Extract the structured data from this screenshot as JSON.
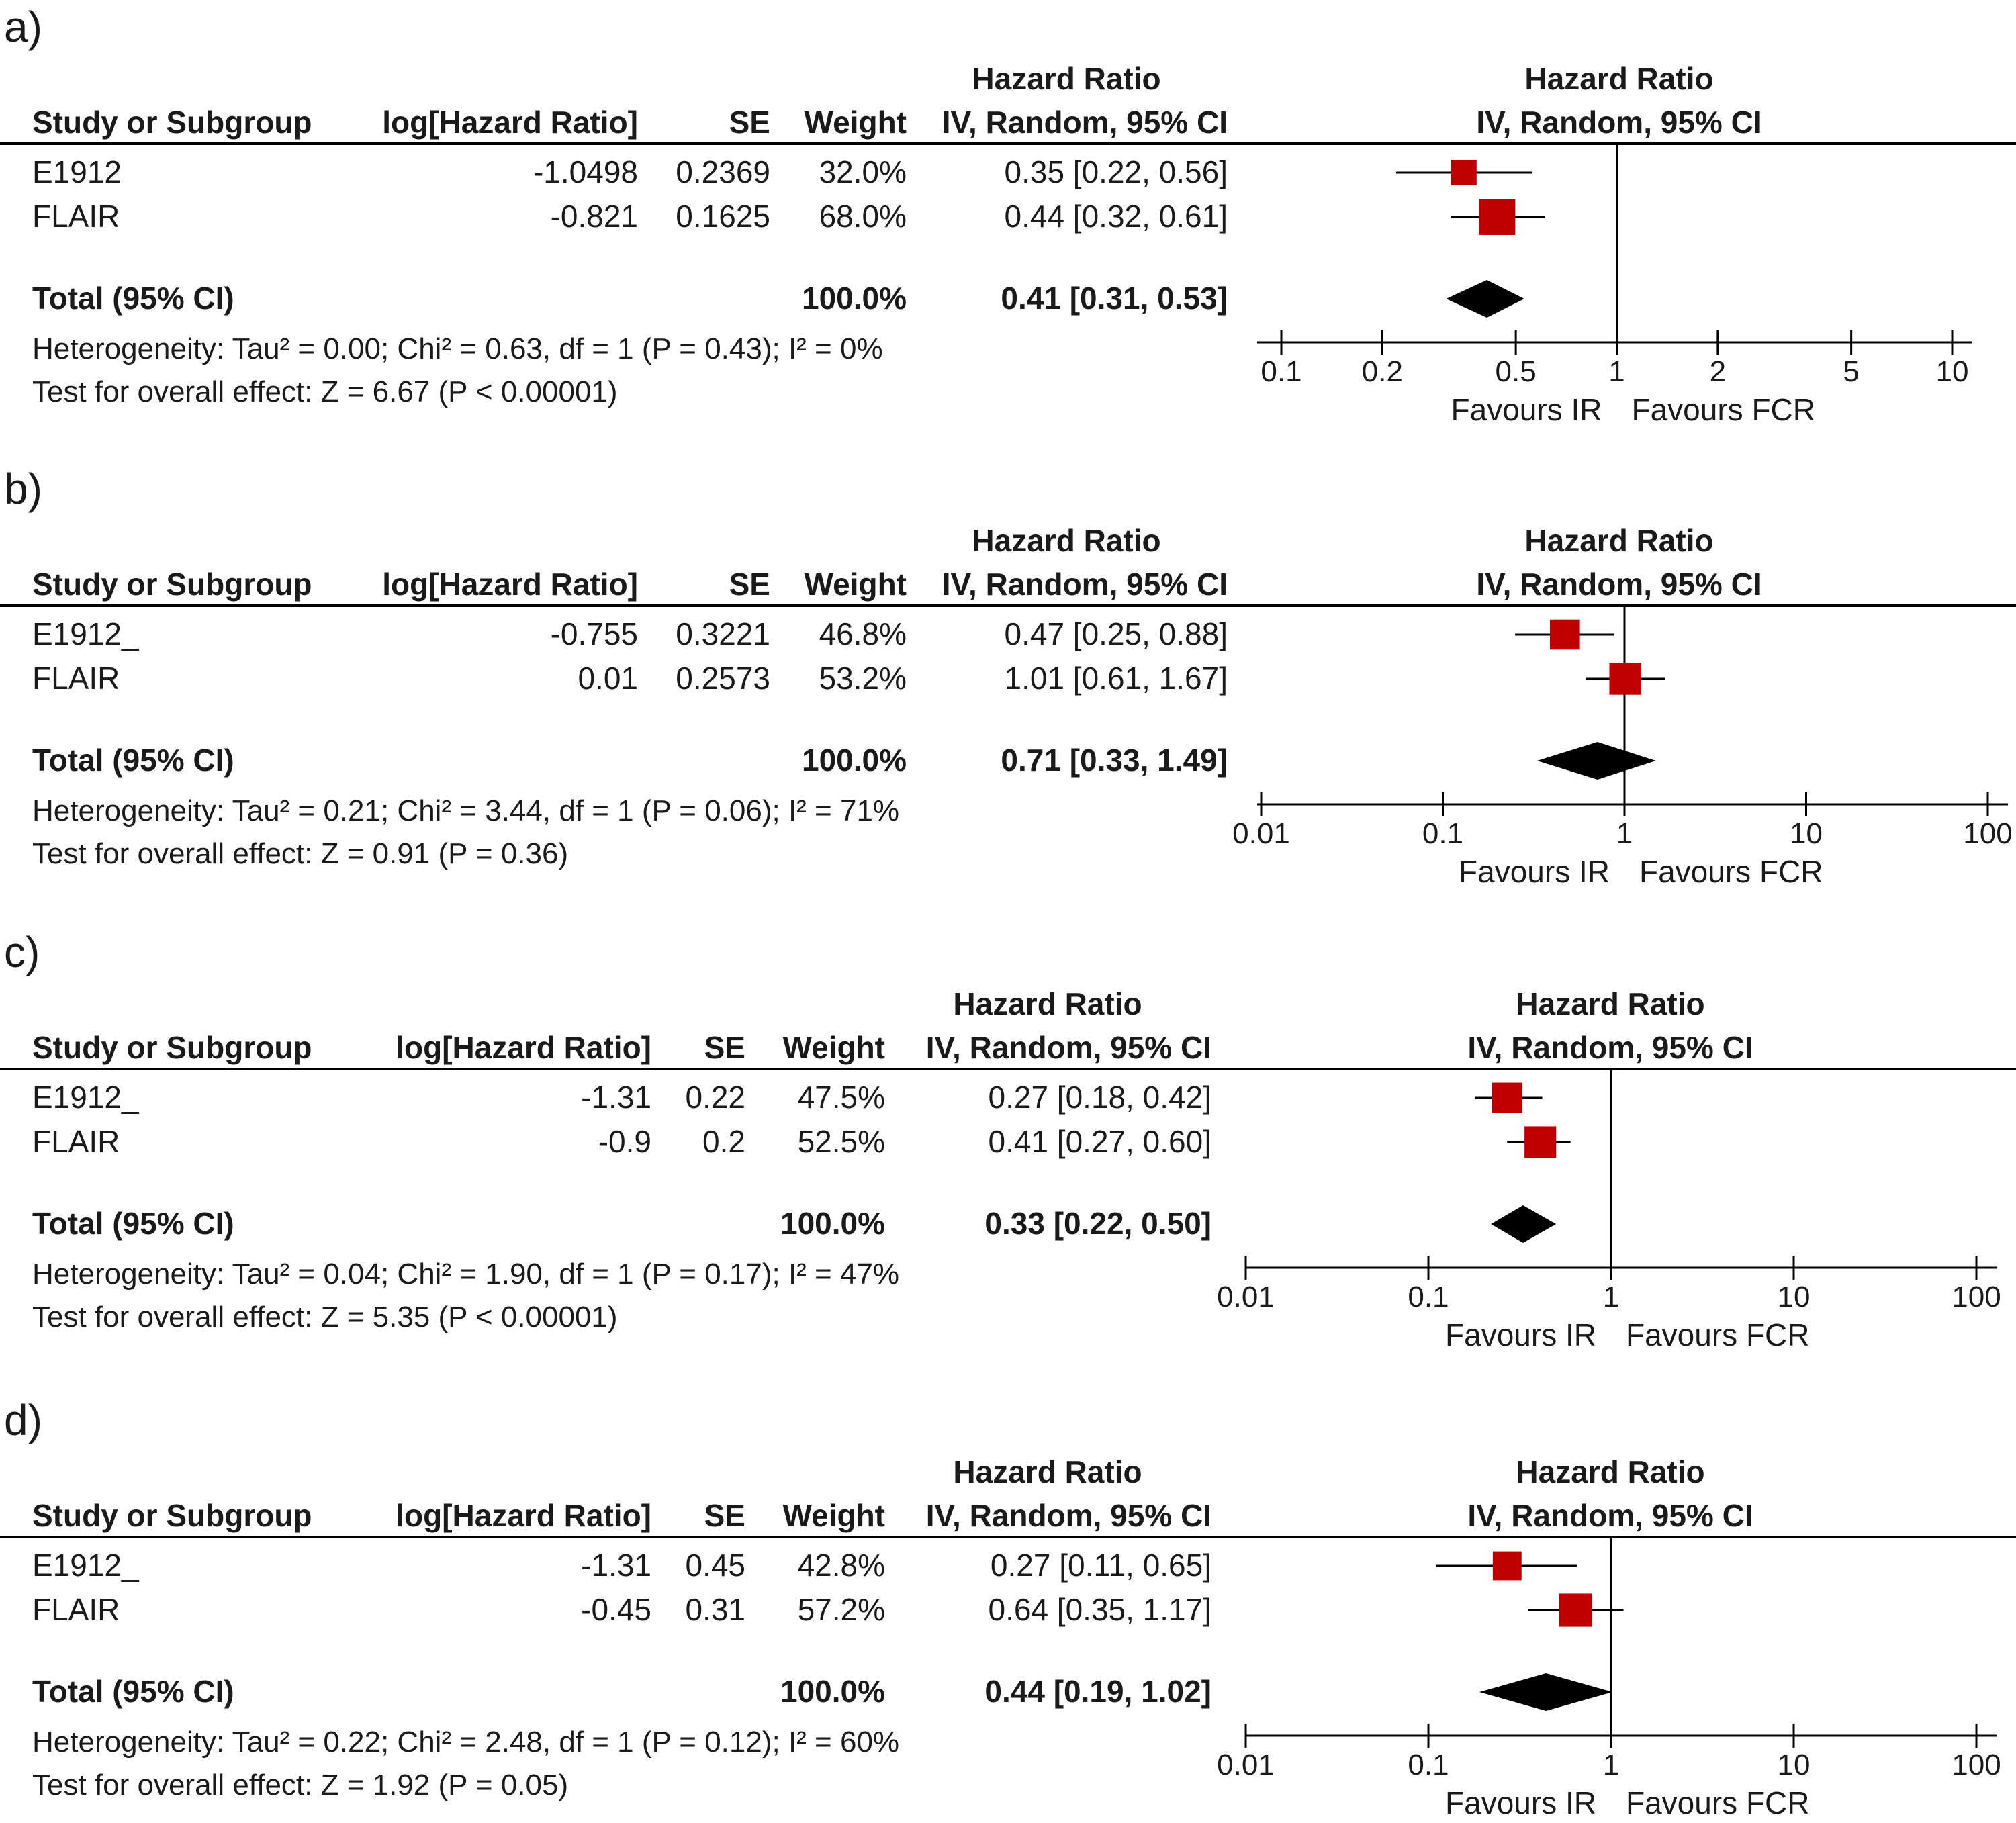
{
  "chart_data": [
    {
      "type": "forest",
      "panel_label": "a)",
      "columns": {
        "study": "Study or Subgroup",
        "log_hr": "log[Hazard Ratio]",
        "se": "SE",
        "weight": "Weight",
        "ci_top": "Hazard Ratio",
        "ci_sub": "IV, Random, 95% CI",
        "plot_top": "Hazard Ratio",
        "plot_sub": "IV, Random, 95% CI"
      },
      "studies": [
        {
          "name": "E1912",
          "log_hr": "-1.0498",
          "se": "0.2369",
          "weight": "32.0%",
          "ci_text": "0.35 [0.22, 0.56]",
          "hr": 0.35,
          "lo": 0.22,
          "hi": 0.56,
          "weight_pct": 32.0
        },
        {
          "name": "FLAIR",
          "log_hr": "-0.821",
          "se": "0.1625",
          "weight": "68.0%",
          "ci_text": "0.44 [0.32, 0.61]",
          "hr": 0.44,
          "lo": 0.32,
          "hi": 0.61,
          "weight_pct": 68.0
        }
      ],
      "total": {
        "label": "Total (95% CI)",
        "weight": "100.0%",
        "ci_text": "0.41 [0.31, 0.53]",
        "hr": 0.41,
        "lo": 0.31,
        "hi": 0.53
      },
      "heterogeneity": "Heterogeneity: Tau² = 0.00; Chi² = 0.63, df = 1 (P = 0.43); I² = 0%",
      "overall_effect": "Test for overall effect: Z = 6.67 (P < 0.00001)",
      "axis": {
        "ticks": [
          0.1,
          0.2,
          0.5,
          1,
          2,
          5,
          10
        ],
        "tick_labels": [
          "0.1",
          "0.2",
          "0.5",
          "1",
          "2",
          "5",
          "10"
        ],
        "range": [
          0.1,
          10
        ],
        "scale": "log"
      },
      "favours_left": "Favours IR",
      "favours_right": "Favours FCR"
    },
    {
      "type": "forest",
      "panel_label": "b)",
      "columns": {
        "study": "Study or Subgroup",
        "log_hr": "log[Hazard Ratio]",
        "se": "SE",
        "weight": "Weight",
        "ci_top": "Hazard Ratio",
        "ci_sub": "IV, Random, 95% CI",
        "plot_top": "Hazard Ratio",
        "plot_sub": "IV, Random, 95% CI"
      },
      "studies": [
        {
          "name": "E1912_",
          "log_hr": "-0.755",
          "se": "0.3221",
          "weight": "46.8%",
          "ci_text": "0.47 [0.25, 0.88]",
          "hr": 0.47,
          "lo": 0.25,
          "hi": 0.88,
          "weight_pct": 46.8
        },
        {
          "name": "FLAIR",
          "log_hr": "0.01",
          "se": "0.2573",
          "weight": "53.2%",
          "ci_text": "1.01 [0.61, 1.67]",
          "hr": 1.01,
          "lo": 0.61,
          "hi": 1.67,
          "weight_pct": 53.2
        }
      ],
      "total": {
        "label": "Total (95% CI)",
        "weight": "100.0%",
        "ci_text": "0.71 [0.33, 1.49]",
        "hr": 0.71,
        "lo": 0.33,
        "hi": 1.49
      },
      "heterogeneity": "Heterogeneity: Tau² = 0.21; Chi² = 3.44, df = 1 (P = 0.06); I² = 71%",
      "overall_effect": "Test for overall effect: Z = 0.91 (P = 0.36)",
      "axis": {
        "ticks": [
          0.01,
          0.1,
          1,
          10,
          100
        ],
        "tick_labels": [
          "0.01",
          "0.1",
          "1",
          "10",
          "100"
        ],
        "range": [
          0.01,
          100
        ],
        "scale": "log"
      },
      "favours_left": "Favours IR",
      "favours_right": "Favours FCR"
    },
    {
      "type": "forest",
      "panel_label": "c)",
      "columns": {
        "study": "Study or Subgroup",
        "log_hr": "log[Hazard Ratio]",
        "se": "SE",
        "weight": "Weight",
        "ci_top": "Hazard Ratio",
        "ci_sub": "IV, Random, 95% CI",
        "plot_top": "Hazard Ratio",
        "plot_sub": "IV, Random, 95% CI"
      },
      "studies": [
        {
          "name": "E1912_",
          "log_hr": "-1.31",
          "se": "0.22",
          "weight": "47.5%",
          "ci_text": "0.27 [0.18, 0.42]",
          "hr": 0.27,
          "lo": 0.18,
          "hi": 0.42,
          "weight_pct": 47.5
        },
        {
          "name": "FLAIR",
          "log_hr": "-0.9",
          "se": "0.2",
          "weight": "52.5%",
          "ci_text": "0.41 [0.27, 0.60]",
          "hr": 0.41,
          "lo": 0.27,
          "hi": 0.6,
          "weight_pct": 52.5
        }
      ],
      "total": {
        "label": "Total (95% CI)",
        "weight": "100.0%",
        "ci_text": "0.33 [0.22, 0.50]",
        "hr": 0.33,
        "lo": 0.22,
        "hi": 0.5
      },
      "heterogeneity": "Heterogeneity: Tau² = 0.04; Chi² = 1.90, df = 1 (P = 0.17); I² = 47%",
      "overall_effect": "Test for overall effect: Z = 5.35 (P < 0.00001)",
      "axis": {
        "ticks": [
          0.01,
          0.1,
          1,
          10,
          100
        ],
        "tick_labels": [
          "0.01",
          "0.1",
          "1",
          "10",
          "100"
        ],
        "range": [
          0.01,
          100
        ],
        "scale": "log"
      },
      "favours_left": "Favours IR",
      "favours_right": "Favours FCR"
    },
    {
      "type": "forest",
      "panel_label": "d)",
      "columns": {
        "study": "Study or Subgroup",
        "log_hr": "log[Hazard Ratio]",
        "se": "SE",
        "weight": "Weight",
        "ci_top": "Hazard Ratio",
        "ci_sub": "IV, Random, 95% CI",
        "plot_top": "Hazard Ratio",
        "plot_sub": "IV, Random, 95% CI"
      },
      "studies": [
        {
          "name": "E1912_",
          "log_hr": "-1.31",
          "se": "0.45",
          "weight": "42.8%",
          "ci_text": "0.27 [0.11, 0.65]",
          "hr": 0.27,
          "lo": 0.11,
          "hi": 0.65,
          "weight_pct": 42.8
        },
        {
          "name": "FLAIR",
          "log_hr": "-0.45",
          "se": "0.31",
          "weight": "57.2%",
          "ci_text": "0.64 [0.35, 1.17]",
          "hr": 0.64,
          "lo": 0.35,
          "hi": 1.17,
          "weight_pct": 57.2
        }
      ],
      "total": {
        "label": "Total (95% CI)",
        "weight": "100.0%",
        "ci_text": "0.44 [0.19, 1.02]",
        "hr": 0.44,
        "lo": 0.19,
        "hi": 1.02
      },
      "heterogeneity": "Heterogeneity: Tau² = 0.22; Chi² = 2.48, df = 1 (P = 0.12); I² = 60%",
      "overall_effect": "Test for overall effect: Z = 1.92 (P = 0.05)",
      "axis": {
        "ticks": [
          0.01,
          0.1,
          1,
          10,
          100
        ],
        "tick_labels": [
          "0.01",
          "0.1",
          "1",
          "10",
          "100"
        ],
        "range": [
          0.01,
          100
        ],
        "scale": "log"
      },
      "favours_left": "Favours IR",
      "favours_right": "Favours FCR"
    }
  ],
  "colors": {
    "study_marker": "#c00000",
    "diamond": "#000000",
    "rule": "#000000",
    "text": "#1a1a1a"
  }
}
